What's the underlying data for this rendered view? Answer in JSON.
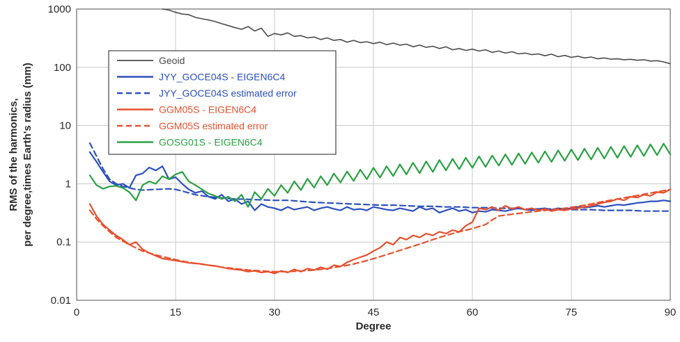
{
  "chart_data": {
    "type": "line",
    "title": "",
    "xlabel": "Degree",
    "ylabel_line1": "RMS of the harmonics,",
    "ylabel_line2": "per degree,times Earth's radius (mm)",
    "xlim": [
      0,
      90
    ],
    "ylim": [
      0.01,
      1000
    ],
    "yscale": "log",
    "grid": true,
    "legend_position": "upper-left",
    "x_ticks": [
      0,
      15,
      30,
      45,
      60,
      75,
      90
    ],
    "x_tick_labels": [
      "0",
      "15",
      "30",
      "45",
      "60",
      "75",
      "90"
    ],
    "y_ticks": [
      0.01,
      0.1,
      1,
      10,
      100,
      1000
    ],
    "y_tick_labels": [
      "0.01",
      "0.1",
      "1",
      "10",
      "100",
      "1000"
    ],
    "series": [
      {
        "name": "Geoid",
        "color": "#4a4a4a",
        "dash": "solid",
        "x": [
          13,
          14,
          15,
          16,
          17,
          18,
          19,
          20,
          21,
          22,
          23,
          24,
          25,
          26,
          27,
          28,
          29,
          30,
          31,
          32,
          33,
          34,
          35,
          36,
          37,
          38,
          39,
          40,
          41,
          42,
          43,
          44,
          45,
          46,
          47,
          48,
          49,
          50,
          51,
          52,
          53,
          54,
          55,
          56,
          57,
          58,
          59,
          60,
          61,
          62,
          63,
          64,
          65,
          66,
          67,
          68,
          69,
          70,
          71,
          72,
          73,
          74,
          75,
          76,
          77,
          78,
          79,
          80,
          81,
          82,
          83,
          84,
          85,
          86,
          87,
          88,
          89,
          90
        ],
        "y": [
          1000,
          960,
          880,
          820,
          800,
          720,
          680,
          650,
          610,
          560,
          520,
          480,
          450,
          500,
          420,
          470,
          340,
          380,
          360,
          390,
          340,
          350,
          320,
          330,
          300,
          320,
          290,
          300,
          270,
          290,
          265,
          275,
          255,
          270,
          245,
          260,
          240,
          250,
          225,
          240,
          220,
          230,
          210,
          225,
          200,
          210,
          195,
          205,
          190,
          200,
          180,
          190,
          175,
          185,
          170,
          175,
          165,
          170,
          158,
          168,
          152,
          160,
          148,
          155,
          145,
          150,
          140,
          145,
          138,
          140,
          135,
          137,
          132,
          135,
          128,
          130,
          124,
          115
        ]
      },
      {
        "name": "JYY_GOCE04S - EIGEN6C4",
        "color": "#2b4fbf",
        "dash": "solid",
        "x": [
          2,
          3,
          4,
          5,
          6,
          7,
          8,
          9,
          10,
          11,
          12,
          13,
          14,
          15,
          16,
          17,
          18,
          19,
          20,
          21,
          22,
          23,
          24,
          25,
          26,
          27,
          28,
          29,
          30,
          31,
          32,
          33,
          34,
          35,
          36,
          37,
          38,
          39,
          40,
          41,
          42,
          43,
          44,
          45,
          46,
          47,
          48,
          49,
          50,
          51,
          52,
          53,
          54,
          55,
          56,
          57,
          58,
          59,
          60,
          61,
          62,
          63,
          64,
          65,
          66,
          67,
          68,
          69,
          70,
          71,
          72,
          73,
          74,
          75,
          76,
          77,
          78,
          79,
          80,
          81,
          82,
          83,
          84,
          85,
          86,
          87,
          88,
          89,
          90
        ],
        "y": [
          3.5,
          2.4,
          1.6,
          1.1,
          0.95,
          1.0,
          0.85,
          1.4,
          1.5,
          1.9,
          1.7,
          2.0,
          1.2,
          1.3,
          1.0,
          0.8,
          0.7,
          0.75,
          0.6,
          0.55,
          0.65,
          0.5,
          0.55,
          0.45,
          0.5,
          0.35,
          0.45,
          0.4,
          0.38,
          0.35,
          0.4,
          0.36,
          0.38,
          0.4,
          0.35,
          0.38,
          0.4,
          0.37,
          0.35,
          0.4,
          0.36,
          0.37,
          0.35,
          0.4,
          0.38,
          0.36,
          0.35,
          0.38,
          0.36,
          0.34,
          0.4,
          0.36,
          0.38,
          0.32,
          0.35,
          0.38,
          0.34,
          0.36,
          0.32,
          0.34,
          0.33,
          0.36,
          0.35,
          0.34,
          0.36,
          0.38,
          0.36,
          0.35,
          0.37,
          0.38,
          0.36,
          0.38,
          0.37,
          0.38,
          0.4,
          0.39,
          0.4,
          0.42,
          0.4,
          0.42,
          0.44,
          0.43,
          0.45,
          0.47,
          0.48,
          0.5,
          0.5,
          0.52,
          0.5
        ]
      },
      {
        "name": "JYY_GOCE04S estimated error",
        "color": "#2b4fbf",
        "dash": "dashed",
        "x": [
          2,
          3,
          4,
          5,
          6,
          7,
          8,
          9,
          10,
          12,
          14,
          15,
          16,
          18,
          20,
          22,
          24,
          26,
          28,
          30,
          32,
          34,
          36,
          38,
          40,
          42,
          44,
          46,
          48,
          50,
          52,
          54,
          56,
          58,
          60,
          62,
          64,
          66,
          68,
          70,
          72,
          74,
          76,
          78,
          80,
          82,
          84,
          86,
          88,
          90
        ],
        "y": [
          5.0,
          3.0,
          1.8,
          1.2,
          1.0,
          0.9,
          0.85,
          0.8,
          0.78,
          0.8,
          0.82,
          0.8,
          0.75,
          0.65,
          0.6,
          0.57,
          0.55,
          0.54,
          0.53,
          0.52,
          0.52,
          0.5,
          0.48,
          0.47,
          0.46,
          0.45,
          0.44,
          0.43,
          0.43,
          0.42,
          0.41,
          0.41,
          0.4,
          0.4,
          0.39,
          0.39,
          0.38,
          0.38,
          0.37,
          0.37,
          0.37,
          0.36,
          0.36,
          0.36,
          0.35,
          0.35,
          0.35,
          0.34,
          0.34,
          0.34
        ]
      },
      {
        "name": "GGM05S - EIGEN6C4",
        "color": "#e8502e",
        "dash": "solid",
        "x": [
          2,
          3,
          4,
          5,
          6,
          7,
          8,
          9,
          10,
          11,
          12,
          13,
          14,
          15,
          16,
          17,
          18,
          19,
          20,
          21,
          22,
          23,
          24,
          25,
          26,
          27,
          28,
          29,
          30,
          31,
          32,
          33,
          34,
          35,
          36,
          37,
          38,
          39,
          40,
          41,
          42,
          43,
          44,
          45,
          46,
          47,
          48,
          49,
          50,
          51,
          52,
          53,
          54,
          55,
          56,
          57,
          58,
          59,
          60,
          61,
          62,
          63,
          64,
          65,
          66,
          67,
          68,
          69,
          70,
          71,
          72,
          73,
          74,
          75,
          76,
          77,
          78,
          79,
          80,
          81,
          82,
          83,
          84,
          85,
          86,
          87,
          88,
          89,
          90
        ],
        "y": [
          0.45,
          0.28,
          0.2,
          0.16,
          0.13,
          0.11,
          0.09,
          0.1,
          0.075,
          0.065,
          0.058,
          0.052,
          0.05,
          0.048,
          0.046,
          0.044,
          0.043,
          0.042,
          0.04,
          0.039,
          0.037,
          0.035,
          0.034,
          0.033,
          0.031,
          0.032,
          0.03,
          0.031,
          0.029,
          0.032,
          0.03,
          0.034,
          0.031,
          0.035,
          0.033,
          0.037,
          0.034,
          0.04,
          0.038,
          0.045,
          0.05,
          0.055,
          0.06,
          0.07,
          0.08,
          0.1,
          0.09,
          0.12,
          0.11,
          0.13,
          0.12,
          0.14,
          0.13,
          0.15,
          0.14,
          0.16,
          0.15,
          0.19,
          0.22,
          0.38,
          0.36,
          0.4,
          0.35,
          0.42,
          0.37,
          0.4,
          0.36,
          0.38,
          0.35,
          0.37,
          0.34,
          0.36,
          0.35,
          0.37,
          0.38,
          0.4,
          0.42,
          0.45,
          0.48,
          0.5,
          0.55,
          0.52,
          0.6,
          0.58,
          0.65,
          0.62,
          0.72,
          0.7,
          0.8
        ]
      },
      {
        "name": "GGM05S estimated error",
        "color": "#e8502e",
        "dash": "dashed",
        "x": [
          2,
          3,
          4,
          5,
          6,
          8,
          10,
          12,
          14,
          16,
          18,
          20,
          22,
          24,
          26,
          28,
          30,
          32,
          34,
          36,
          38,
          40,
          42,
          44,
          46,
          48,
          50,
          52,
          54,
          56,
          58,
          60,
          62,
          63,
          64,
          66,
          68,
          70,
          72,
          74,
          76,
          78,
          80,
          82,
          84,
          86,
          88,
          90
        ],
        "y": [
          0.35,
          0.25,
          0.19,
          0.15,
          0.12,
          0.09,
          0.07,
          0.06,
          0.053,
          0.047,
          0.043,
          0.04,
          0.037,
          0.035,
          0.033,
          0.032,
          0.031,
          0.031,
          0.032,
          0.033,
          0.035,
          0.038,
          0.042,
          0.048,
          0.056,
          0.066,
          0.078,
          0.092,
          0.11,
          0.13,
          0.15,
          0.17,
          0.2,
          0.24,
          0.28,
          0.3,
          0.32,
          0.34,
          0.36,
          0.38,
          0.41,
          0.45,
          0.5,
          0.55,
          0.6,
          0.66,
          0.73,
          0.8
        ]
      },
      {
        "name": "GOSG01S - EIGEN6C4",
        "color": "#2aa043",
        "dash": "solid",
        "x": [
          2,
          3,
          4,
          5,
          6,
          7,
          8,
          9,
          10,
          11,
          12,
          13,
          14,
          15,
          16,
          17,
          18,
          19,
          20,
          21,
          22,
          23,
          24,
          25,
          26,
          27,
          28,
          29,
          30,
          31,
          32,
          33,
          34,
          35,
          36,
          37,
          38,
          39,
          40,
          41,
          42,
          43,
          44,
          45,
          46,
          47,
          48,
          49,
          50,
          51,
          52,
          53,
          54,
          55,
          56,
          57,
          58,
          59,
          60,
          61,
          62,
          63,
          64,
          65,
          66,
          67,
          68,
          69,
          70,
          71,
          72,
          73,
          74,
          75,
          76,
          77,
          78,
          79,
          80,
          81,
          82,
          83,
          84,
          85,
          86,
          87,
          88,
          89,
          90
        ],
        "y": [
          1.4,
          0.95,
          0.82,
          0.9,
          0.92,
          0.85,
          0.72,
          0.52,
          0.95,
          1.1,
          1.0,
          1.35,
          1.2,
          1.45,
          1.6,
          1.1,
          0.95,
          0.8,
          0.68,
          0.62,
          0.55,
          0.6,
          0.5,
          0.65,
          0.4,
          0.72,
          0.55,
          0.82,
          0.62,
          0.95,
          0.7,
          1.1,
          0.78,
          1.22,
          0.86,
          1.35,
          0.95,
          1.5,
          1.05,
          1.62,
          1.12,
          1.75,
          1.2,
          1.88,
          1.28,
          2.0,
          1.36,
          2.15,
          1.45,
          2.3,
          1.52,
          2.42,
          1.6,
          2.55,
          1.7,
          2.68,
          1.78,
          2.8,
          1.88,
          2.95,
          1.95,
          3.05,
          2.05,
          3.2,
          2.12,
          3.32,
          2.2,
          3.45,
          2.3,
          3.6,
          2.38,
          3.75,
          2.48,
          3.88,
          2.55,
          4.0,
          2.62,
          4.15,
          2.72,
          4.3,
          2.8,
          4.45,
          2.9,
          4.6,
          3.0,
          4.75,
          3.1,
          4.9,
          3.2
        ]
      }
    ]
  }
}
